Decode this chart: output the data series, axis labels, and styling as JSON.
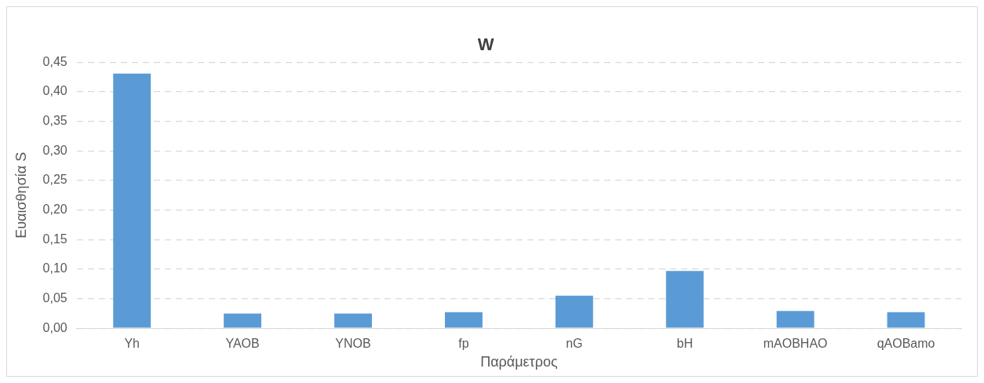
{
  "chart_data": {
    "type": "bar",
    "title": "W",
    "xlabel": "Παράμετρος",
    "ylabel": "Ευαισθησία S",
    "categories": [
      "Yh",
      "YAOB",
      "YNOB",
      "fp",
      "nG",
      "bH",
      "mAOBHAO",
      "qAOBamo"
    ],
    "values": [
      0.431,
      0.025,
      0.025,
      0.027,
      0.055,
      0.097,
      0.029,
      0.027
    ],
    "color": "#5b9bd5",
    "ylim": [
      0,
      0.45
    ],
    "yticks": [
      {
        "value": 0,
        "label": "0,00"
      },
      {
        "value": 0.05,
        "label": "0,05"
      },
      {
        "value": 0.1,
        "label": "0,10"
      },
      {
        "value": 0.15,
        "label": "0,15"
      },
      {
        "value": 0.2,
        "label": "0,20"
      },
      {
        "value": 0.25,
        "label": "0,25"
      },
      {
        "value": 0.3,
        "label": "0,30"
      },
      {
        "value": 0.35,
        "label": "0,35"
      },
      {
        "value": 0.4,
        "label": "0,40"
      },
      {
        "value": 0.45,
        "label": "0,45"
      }
    ],
    "grid": "y",
    "legend": false
  }
}
